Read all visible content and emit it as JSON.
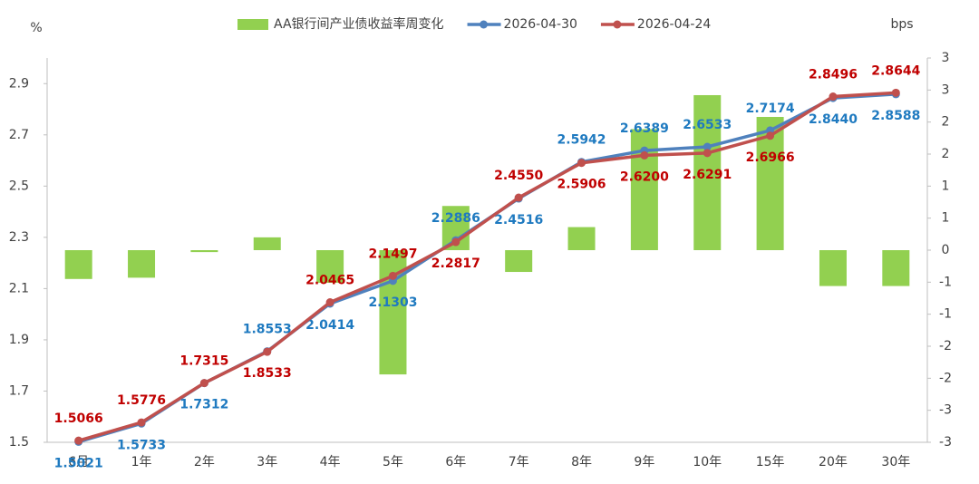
{
  "chart_data": {
    "type": "combo",
    "y_label": "%",
    "y2_label": "bps",
    "categories": [
      "6月",
      "1年",
      "2年",
      "3年",
      "4年",
      "5年",
      "6年",
      "7年",
      "8年",
      "9年",
      "10年",
      "15年",
      "20年",
      "30年"
    ],
    "ylim": [
      1.5,
      3.0
    ],
    "yticks": [
      1.5,
      1.7,
      1.9,
      2.1,
      2.3,
      2.5,
      2.7,
      2.9
    ],
    "y2lim": [
      -3,
      3
    ],
    "y2ticks": [
      3,
      {
        "value": 2.5,
        "label": "3"
      },
      2,
      {
        "value": 1.5,
        "label": "2"
      },
      1,
      {
        "value": 0.5,
        "label": "1"
      },
      0,
      {
        "value": -0.5,
        "label": "-1"
      },
      -1,
      {
        "value": -1.5,
        "label": "-2"
      },
      -2,
      {
        "value": -2.5,
        "label": "-3"
      },
      -3
    ],
    "grid": false,
    "series": [
      {
        "name": "AA银行间产业债收益率周变化",
        "type": "bar",
        "axis": "y2",
        "color": "#92d050",
        "values": [
          -0.45,
          -0.43,
          -0.03,
          0.2,
          -0.51,
          -1.94,
          0.69,
          -0.34,
          0.36,
          1.89,
          2.42,
          2.08,
          -0.56,
          -0.56
        ]
      },
      {
        "name": "2026-04-30",
        "type": "line",
        "color": "#4f81bd",
        "label_color": "#1f7ac0",
        "values": [
          1.5021,
          1.5733,
          1.7312,
          1.8553,
          2.0414,
          2.1303,
          2.2886,
          2.4516,
          2.5942,
          2.6389,
          2.6533,
          2.7174,
          2.844,
          2.8588
        ],
        "value_labels": [
          "1.5021",
          "1.5733",
          "1.7312",
          "1.8553",
          "2.0414",
          "2.1303",
          "2.2886",
          "2.4516",
          "2.5942",
          "2.6389",
          "2.6533",
          "2.7174",
          "2.8440",
          "2.8588"
        ]
      },
      {
        "name": "2026-04-24",
        "type": "line",
        "color": "#c0504d",
        "label_color": "#c00000",
        "values": [
          1.5066,
          1.5776,
          1.7315,
          1.8533,
          2.0465,
          2.1497,
          2.2817,
          2.455,
          2.5906,
          2.62,
          2.6291,
          2.6966,
          2.8496,
          2.8644
        ],
        "value_labels": [
          "1.5066",
          "1.5776",
          "1.7315",
          "1.8533",
          "2.0465",
          "2.1497",
          "2.2817",
          "2.4550",
          "2.5906",
          "2.6200",
          "2.6291",
          "2.6966",
          "2.8496",
          "2.8644"
        ]
      }
    ]
  }
}
